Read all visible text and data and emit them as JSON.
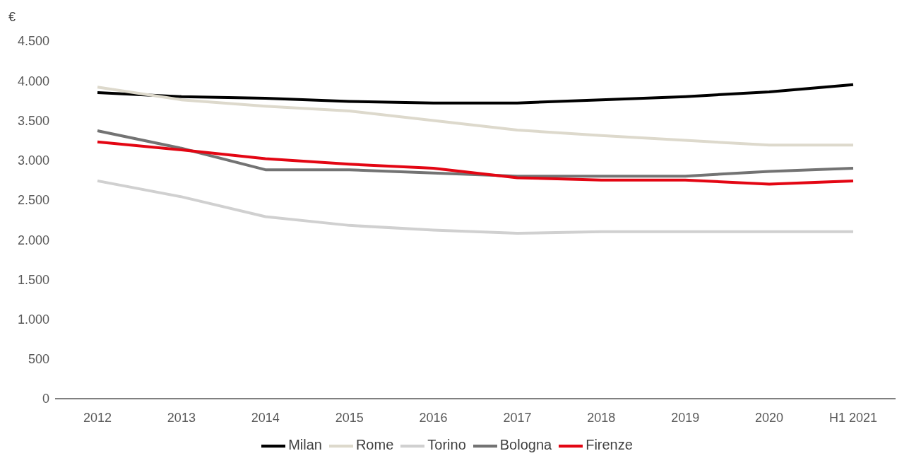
{
  "chart_data": {
    "type": "line",
    "ylabel": "€",
    "categories": [
      "2012",
      "2013",
      "2014",
      "2015",
      "2016",
      "2017",
      "2018",
      "2019",
      "2020",
      "H1 2021"
    ],
    "series": [
      {
        "name": "Milan",
        "color": "#000000",
        "values": [
          3850,
          3800,
          3780,
          3740,
          3720,
          3720,
          3760,
          3800,
          3860,
          3950
        ]
      },
      {
        "name": "Rome",
        "color": "#ddd9cc",
        "values": [
          3920,
          3760,
          3680,
          3620,
          3500,
          3380,
          3310,
          3250,
          3190,
          3190
        ]
      },
      {
        "name": "Torino",
        "color": "#d0d0d0",
        "values": [
          2740,
          2540,
          2290,
          2180,
          2120,
          2080,
          2100,
          2100,
          2100,
          2100
        ]
      },
      {
        "name": "Bologna",
        "color": "#737373",
        "values": [
          3370,
          3150,
          2880,
          2880,
          2840,
          2800,
          2800,
          2800,
          2860,
          2900
        ]
      },
      {
        "name": "Firenze",
        "color": "#e30613",
        "values": [
          3230,
          3130,
          3020,
          2950,
          2900,
          2780,
          2750,
          2750,
          2700,
          2740
        ]
      }
    ],
    "ylim": [
      0,
      4500
    ],
    "yticks": [
      {
        "value": 0,
        "label": "0"
      },
      {
        "value": 500,
        "label": "500"
      },
      {
        "value": 1000,
        "label": "1.000"
      },
      {
        "value": 1500,
        "label": "1.500"
      },
      {
        "value": 2000,
        "label": "2.000"
      },
      {
        "value": 2500,
        "label": "2.500"
      },
      {
        "value": 3000,
        "label": "3.000"
      },
      {
        "value": 3500,
        "label": "3.500"
      },
      {
        "value": 4000,
        "label": "4.000"
      },
      {
        "value": 4500,
        "label": "4.500"
      }
    ],
    "grid": false,
    "legend": "bottom",
    "marker": "none",
    "line_style": "solid"
  }
}
